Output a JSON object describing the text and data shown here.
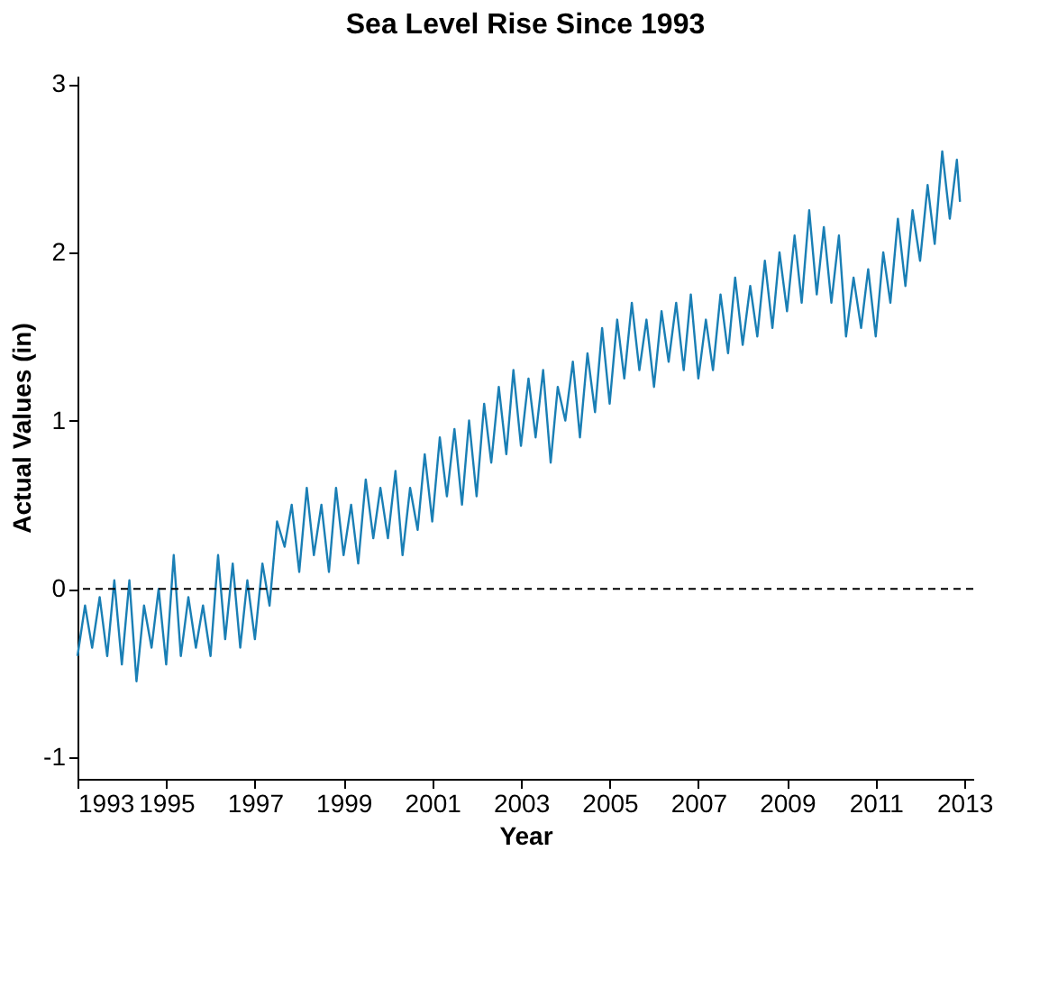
{
  "chart_data": {
    "type": "line",
    "title": "Sea Level Rise Since 1993",
    "xlabel": "Year",
    "ylabel": "Actual Values (in)",
    "x": [
      1993.0,
      1993.17,
      1993.33,
      1993.5,
      1993.67,
      1993.83,
      1994.0,
      1994.17,
      1994.33,
      1994.5,
      1994.67,
      1994.83,
      1995.0,
      1995.17,
      1995.33,
      1995.5,
      1995.67,
      1995.83,
      1996.0,
      1996.17,
      1996.33,
      1996.5,
      1996.67,
      1996.83,
      1997.0,
      1997.17,
      1997.33,
      1997.5,
      1997.67,
      1997.83,
      1998.0,
      1998.17,
      1998.33,
      1998.5,
      1998.67,
      1998.83,
      1999.0,
      1999.17,
      1999.33,
      1999.5,
      1999.67,
      1999.83,
      2000.0,
      2000.17,
      2000.33,
      2000.5,
      2000.67,
      2000.83,
      2001.0,
      2001.17,
      2001.33,
      2001.5,
      2001.67,
      2001.83,
      2002.0,
      2002.17,
      2002.33,
      2002.5,
      2002.67,
      2002.83,
      2003.0,
      2003.17,
      2003.33,
      2003.5,
      2003.67,
      2003.83,
      2004.0,
      2004.17,
      2004.33,
      2004.5,
      2004.67,
      2004.83,
      2005.0,
      2005.17,
      2005.33,
      2005.5,
      2005.67,
      2005.83,
      2006.0,
      2006.17,
      2006.33,
      2006.5,
      2006.67,
      2006.83,
      2007.0,
      2007.17,
      2007.33,
      2007.5,
      2007.67,
      2007.83,
      2008.0,
      2008.17,
      2008.33,
      2008.5,
      2008.67,
      2008.83,
      2009.0,
      2009.17,
      2009.33,
      2009.5,
      2009.67,
      2009.83,
      2010.0,
      2010.17,
      2010.33,
      2010.5,
      2010.67,
      2010.83,
      2011.0,
      2011.17,
      2011.33,
      2011.5,
      2011.67,
      2011.83,
      2012.0,
      2012.17,
      2012.33,
      2012.5,
      2012.67,
      2012.83,
      2012.9
    ],
    "series": [
      {
        "color": "#1a7fb5",
        "values": [
          -0.4,
          -0.1,
          -0.35,
          -0.05,
          -0.4,
          0.05,
          -0.45,
          0.05,
          -0.55,
          -0.1,
          -0.35,
          0.0,
          -0.45,
          0.2,
          -0.4,
          -0.05,
          -0.35,
          -0.1,
          -0.4,
          0.2,
          -0.3,
          0.15,
          -0.35,
          0.05,
          -0.3,
          0.15,
          -0.1,
          0.4,
          0.25,
          0.5,
          0.1,
          0.6,
          0.2,
          0.5,
          0.1,
          0.6,
          0.2,
          0.5,
          0.15,
          0.65,
          0.3,
          0.6,
          0.3,
          0.7,
          0.2,
          0.6,
          0.35,
          0.8,
          0.4,
          0.9,
          0.55,
          0.95,
          0.5,
          1.0,
          0.55,
          1.1,
          0.75,
          1.2,
          0.8,
          1.3,
          0.85,
          1.25,
          0.9,
          1.3,
          0.75,
          1.2,
          1.0,
          1.35,
          0.9,
          1.4,
          1.05,
          1.55,
          1.1,
          1.6,
          1.25,
          1.7,
          1.3,
          1.6,
          1.2,
          1.65,
          1.35,
          1.7,
          1.3,
          1.75,
          1.25,
          1.6,
          1.3,
          1.75,
          1.4,
          1.85,
          1.45,
          1.8,
          1.5,
          1.95,
          1.55,
          2.0,
          1.65,
          2.1,
          1.7,
          2.25,
          1.75,
          2.15,
          1.7,
          2.1,
          1.5,
          1.85,
          1.55,
          1.9,
          1.5,
          2.0,
          1.7,
          2.2,
          1.8,
          2.25,
          1.95,
          2.4,
          2.05,
          2.6,
          2.2,
          2.55,
          2.3
        ]
      }
    ],
    "xlim": [
      1993,
      2013.2
    ],
    "xticks": [
      1993,
      1995,
      1997,
      1999,
      2001,
      2003,
      2005,
      2007,
      2009,
      2011,
      2013
    ],
    "ylim": [
      -1.13,
      3.05
    ],
    "yticks": [
      -1,
      0,
      1,
      2,
      3
    ],
    "ref_lines": [
      {
        "axis": "y",
        "value": 0,
        "color": "#000000",
        "line_style": "dashed"
      }
    ],
    "grid": false,
    "legend": false,
    "line_style": "solid",
    "marker": "none"
  }
}
